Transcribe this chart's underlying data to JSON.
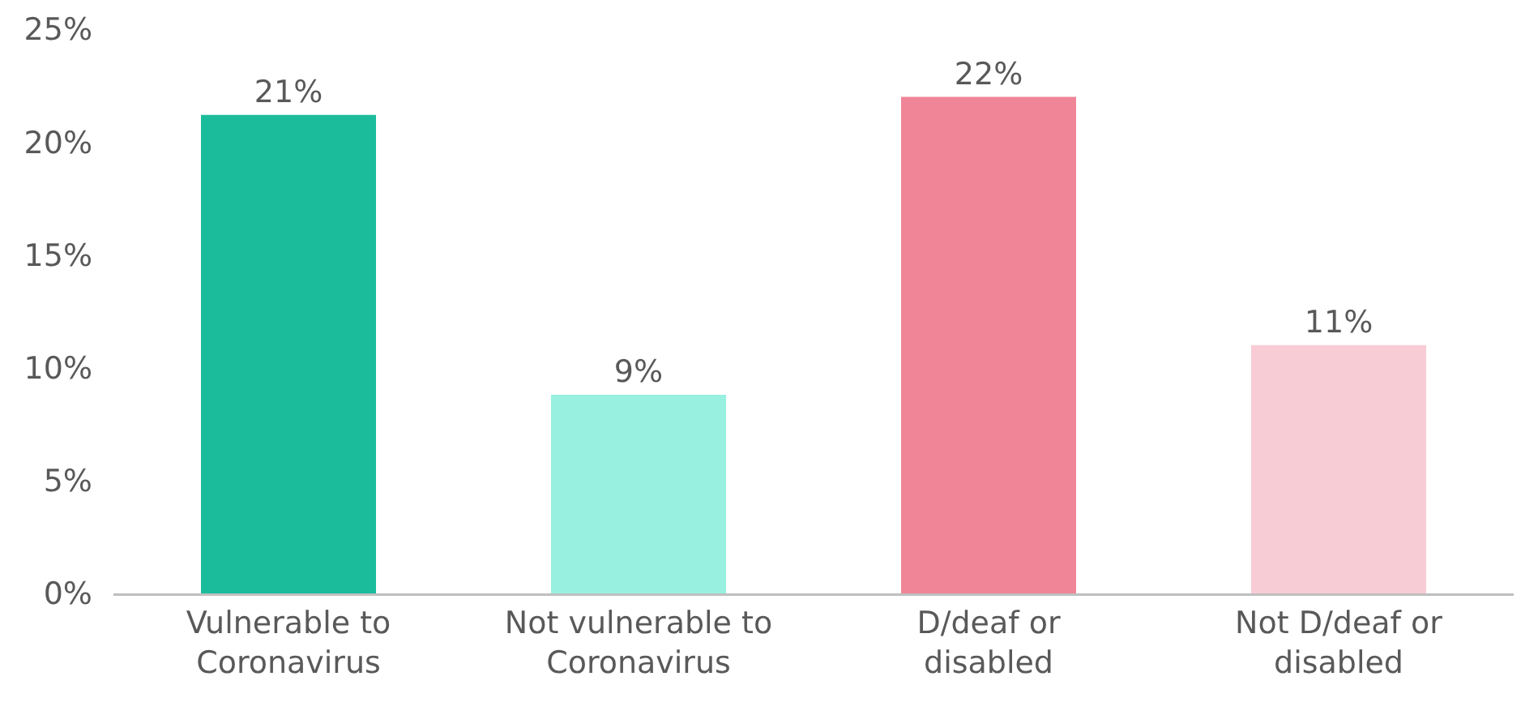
{
  "chart_data": {
    "type": "bar",
    "categories": [
      "Vulnerable to Coronavirus",
      "Not vulnerable to Coronavirus",
      "D/deaf or disabled",
      "Not D/deaf or disabled"
    ],
    "values": [
      21.2,
      8.8,
      22,
      11
    ],
    "colors": [
      "#1abc9c",
      "#98f0e0",
      "#f08597",
      "#f8ccd5"
    ],
    "value_labels": [
      "21%",
      "9%",
      "22%",
      "11%"
    ],
    "ylim": [
      0,
      25
    ],
    "yticks": [
      {
        "value": 0,
        "label": "0%"
      },
      {
        "value": 5,
        "label": "5%"
      },
      {
        "value": 10,
        "label": "10%"
      },
      {
        "value": 15,
        "label": "15%"
      },
      {
        "value": 20,
        "label": "20%"
      },
      {
        "value": 25,
        "label": "25%"
      }
    ],
    "grid": false
  }
}
